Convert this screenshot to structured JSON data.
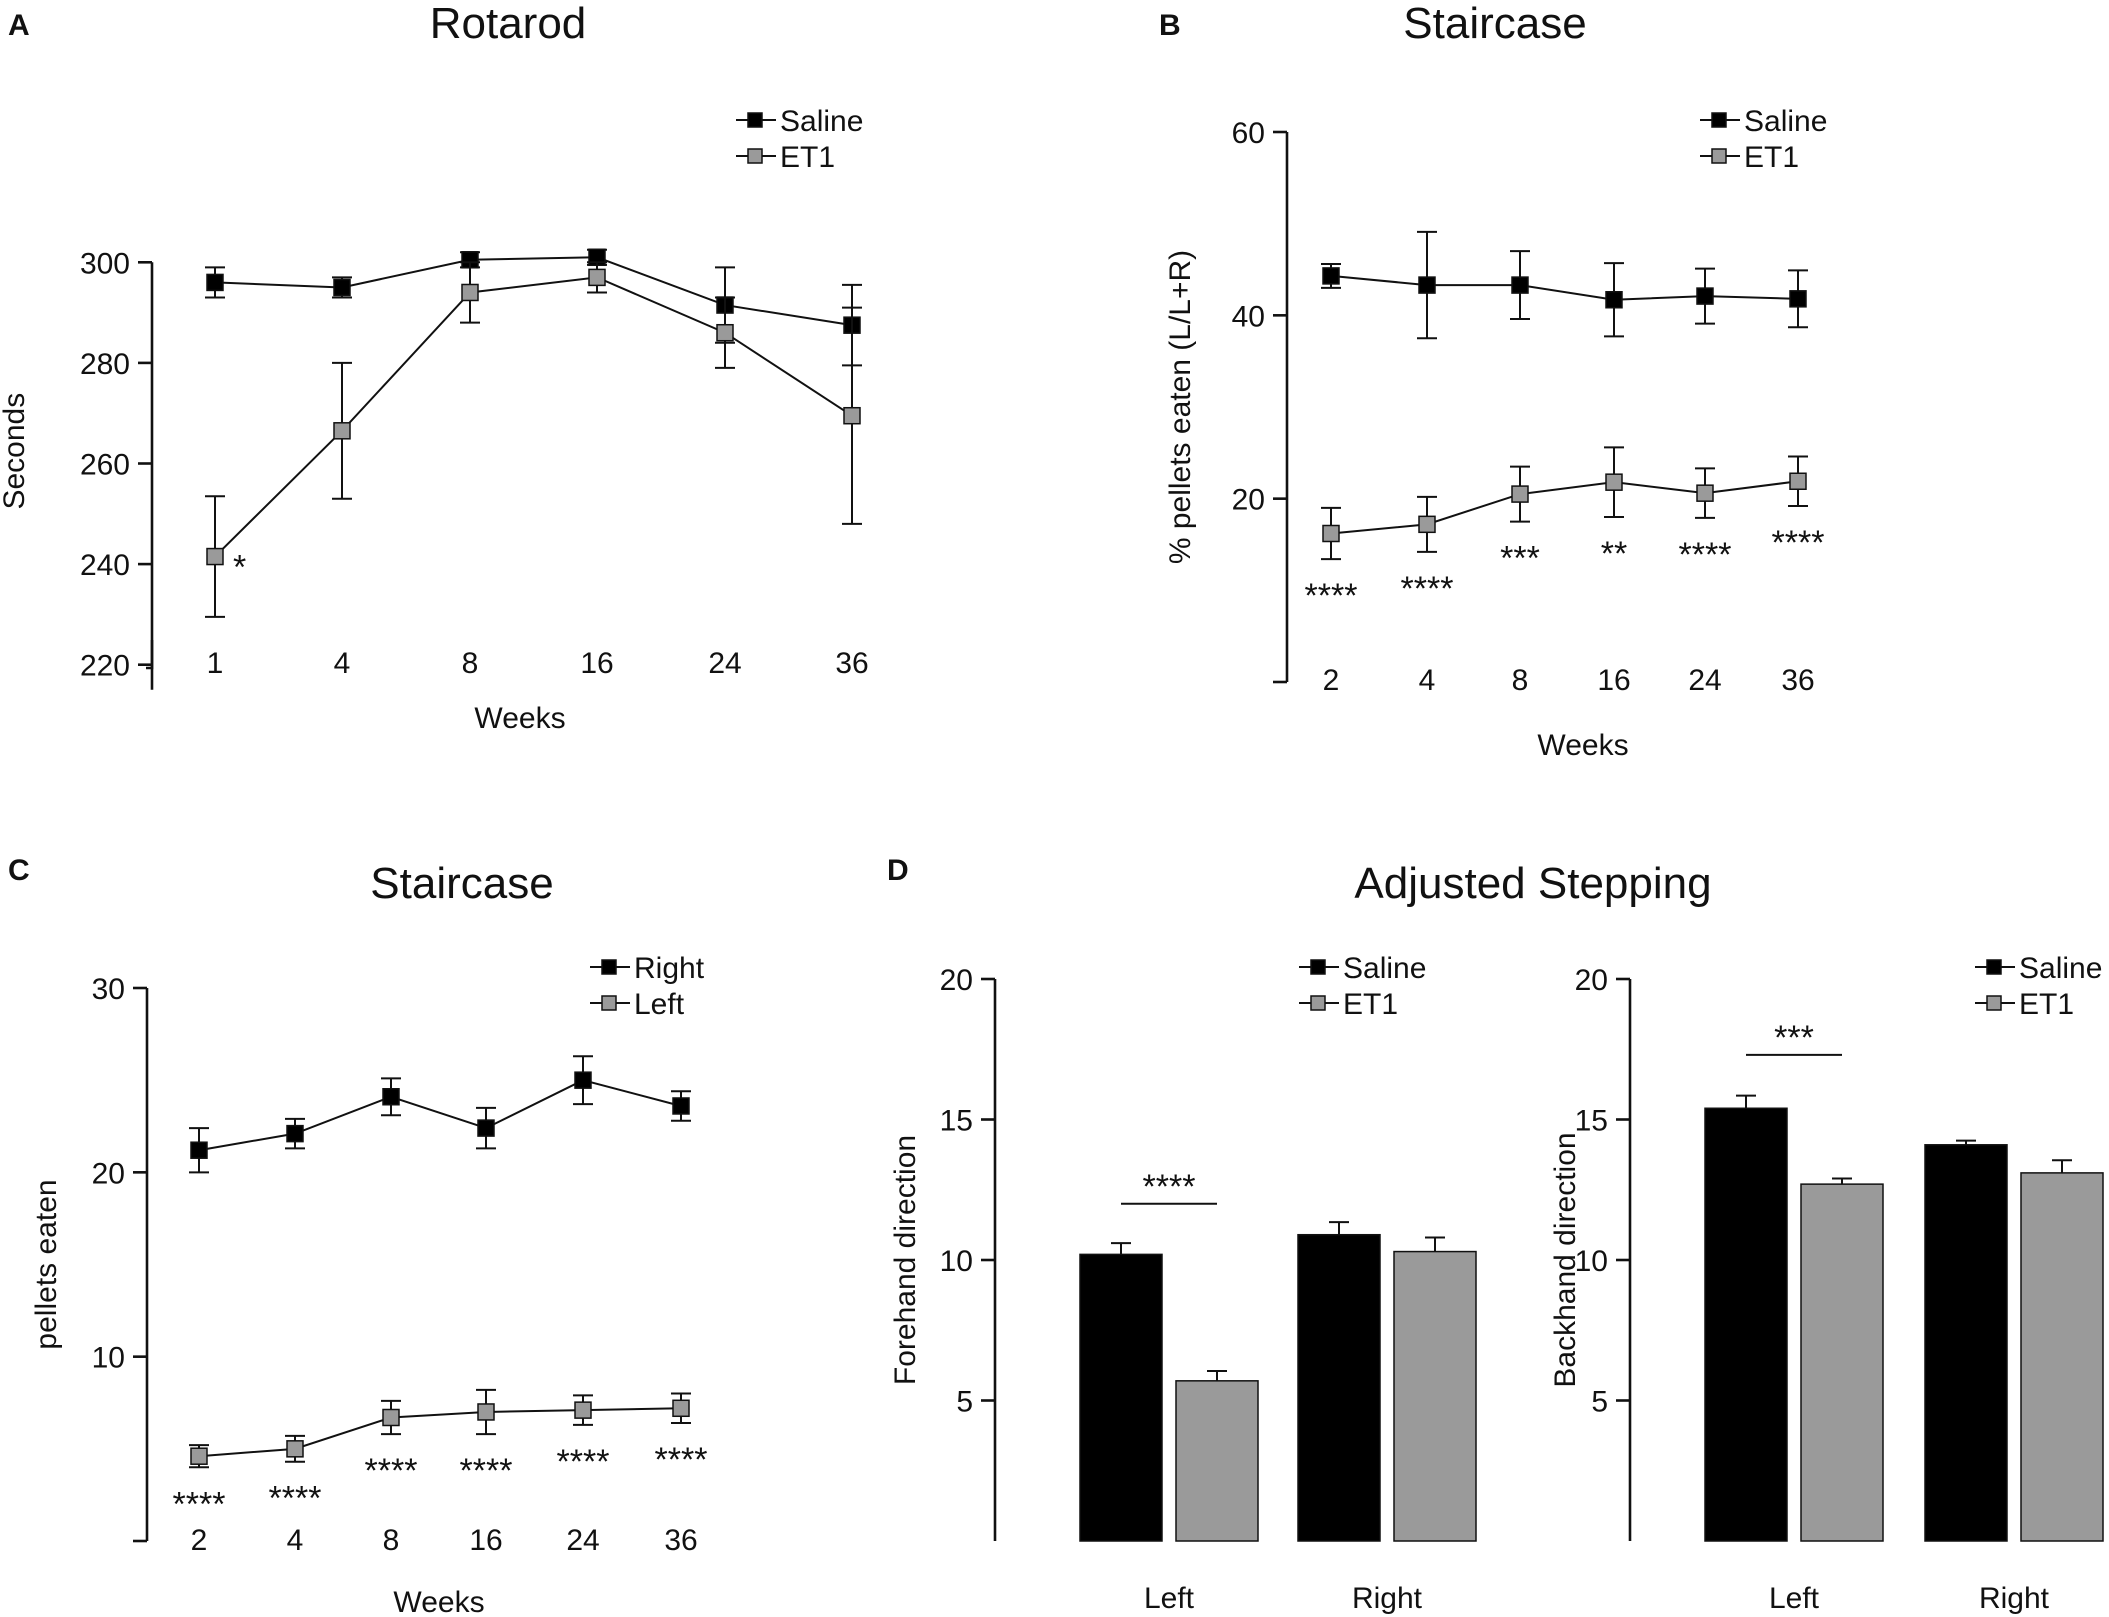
{
  "colors": {
    "saline": "#000000",
    "et1": "#9a9a9a",
    "ink": "#111111"
  },
  "chart_data": [
    {
      "id": "A",
      "panel_letter": "A",
      "type": "line",
      "title": "Rotarod",
      "xlabel": "Weeks",
      "ylabel": "Seconds",
      "categories": [
        "1",
        "4",
        "8",
        "16",
        "24",
        "36"
      ],
      "ylim": [
        210,
        310
      ],
      "yticks": [
        220,
        240,
        260,
        280,
        300
      ],
      "legend_position": "top-right",
      "series": [
        {
          "name": "Saline",
          "color": "#000000",
          "values": [
            296,
            295,
            300.5,
            301,
            291.5,
            287.5
          ],
          "errors": [
            3,
            2,
            1.5,
            1.5,
            7.5,
            8
          ]
        },
        {
          "name": "ET1",
          "color": "#9a9a9a",
          "values": [
            241.5,
            266.5,
            294,
            297,
            286,
            269.5
          ],
          "errors": [
            12,
            13.5,
            6,
            3,
            7,
            21.5
          ]
        }
      ],
      "annotations": [
        {
          "category_index": 0,
          "text": "*",
          "placement": "right"
        }
      ]
    },
    {
      "id": "B",
      "panel_letter": "B",
      "type": "line",
      "title": "Staircase",
      "xlabel": "Weeks",
      "ylabel": "% pellets eaten (L/L+R)",
      "categories": [
        "2",
        "4",
        "8",
        "16",
        "24",
        "36"
      ],
      "ylim": [
        0,
        60
      ],
      "yticks": [
        20,
        40,
        60
      ],
      "legend_position": "top-right",
      "series": [
        {
          "name": "Saline",
          "color": "#000000",
          "values": [
            44.3,
            43.3,
            43.3,
            41.7,
            42.1,
            41.8
          ],
          "errors": [
            1.3,
            5.8,
            3.7,
            4,
            3,
            3.1
          ]
        },
        {
          "name": "ET1",
          "color": "#9a9a9a",
          "values": [
            16.2,
            17.2,
            20.5,
            21.8,
            20.6,
            21.9
          ],
          "errors": [
            2.8,
            3,
            3,
            3.8,
            2.7,
            2.7
          ]
        }
      ],
      "annotations": [
        {
          "category_index": 0,
          "text": "****",
          "placement": "below"
        },
        {
          "category_index": 1,
          "text": "****",
          "placement": "below"
        },
        {
          "category_index": 2,
          "text": "***",
          "placement": "below"
        },
        {
          "category_index": 3,
          "text": "**",
          "placement": "below"
        },
        {
          "category_index": 4,
          "text": "****",
          "placement": "below"
        },
        {
          "category_index": 5,
          "text": "****",
          "placement": "below"
        }
      ]
    },
    {
      "id": "C",
      "panel_letter": "C",
      "type": "line",
      "title": "Staircase",
      "xlabel": "Weeks",
      "ylabel": "pellets eaten",
      "categories": [
        "2",
        "4",
        "8",
        "16",
        "24",
        "36"
      ],
      "ylim": [
        0,
        30
      ],
      "yticks": [
        10,
        20,
        30
      ],
      "legend_position": "top-right",
      "series": [
        {
          "name": "Right",
          "color": "#000000",
          "values": [
            21.2,
            22.1,
            24.1,
            22.4,
            25,
            23.6
          ],
          "errors": [
            1.2,
            0.8,
            1,
            1.1,
            1.3,
            0.8
          ]
        },
        {
          "name": "Left",
          "color": "#9a9a9a",
          "values": [
            4.6,
            5,
            6.7,
            7,
            7.1,
            7.2
          ],
          "errors": [
            0.6,
            0.7,
            0.9,
            1.2,
            0.8,
            0.8
          ]
        }
      ],
      "annotations": [
        {
          "category_index": 0,
          "text": "****",
          "placement": "below"
        },
        {
          "category_index": 1,
          "text": "****",
          "placement": "below"
        },
        {
          "category_index": 2,
          "text": "****",
          "placement": "below"
        },
        {
          "category_index": 3,
          "text": "****",
          "placement": "below"
        },
        {
          "category_index": 4,
          "text": "****",
          "placement": "below"
        },
        {
          "category_index": 5,
          "text": "****",
          "placement": "below"
        }
      ]
    },
    {
      "id": "D1",
      "panel_letter": "D",
      "type": "bar",
      "title": "Adjusted Stepping",
      "xlabel": "",
      "ylabel": "Forehand direction",
      "categories": [
        "Left",
        "Right"
      ],
      "ylim": [
        0,
        20
      ],
      "yticks": [
        5,
        10,
        15,
        20
      ],
      "legend_position": "top-right",
      "series": [
        {
          "name": "Saline",
          "color": "#000000",
          "values": [
            10.2,
            10.9
          ],
          "errors": [
            0.4,
            0.45
          ]
        },
        {
          "name": "ET1",
          "color": "#9a9a9a",
          "values": [
            5.7,
            10.3
          ],
          "errors": [
            0.35,
            0.5
          ]
        }
      ],
      "significance": [
        {
          "category_index": 0,
          "text": "****",
          "y": 12
        }
      ]
    },
    {
      "id": "D2",
      "panel_letter": "",
      "type": "bar",
      "title": "",
      "xlabel": "",
      "ylabel": "Backhand direction",
      "categories": [
        "Left",
        "Right"
      ],
      "ylim": [
        0,
        20
      ],
      "yticks": [
        5,
        10,
        15,
        20
      ],
      "legend_position": "top-right",
      "series": [
        {
          "name": "Saline",
          "color": "#000000",
          "values": [
            15.4,
            14.1
          ],
          "errors": [
            0.45,
            0.15
          ]
        },
        {
          "name": "ET1",
          "color": "#9a9a9a",
          "values": [
            12.7,
            13.1
          ],
          "errors": [
            0.2,
            0.45
          ]
        }
      ],
      "significance": [
        {
          "category_index": 0,
          "text": "***",
          "y": 17.3
        }
      ]
    }
  ]
}
